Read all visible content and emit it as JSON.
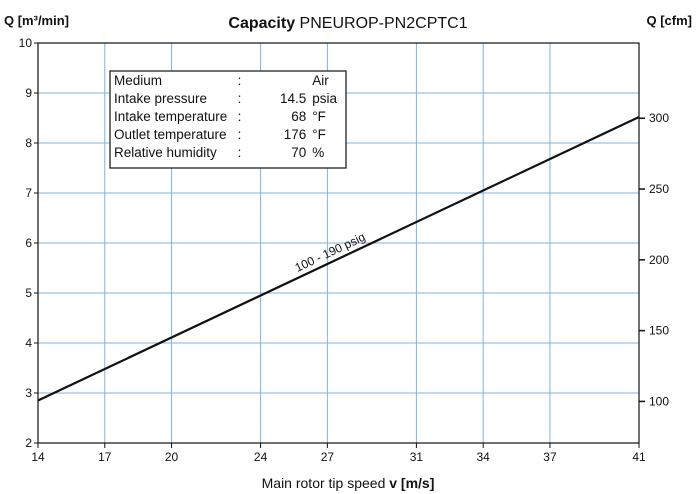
{
  "chart_data": {
    "type": "line",
    "title": {
      "bold": "Capacity",
      "rest": " PNEUROP-PN2CPTC1"
    },
    "ylabel_left": "Q [m³/min]",
    "ylabel_right": "Q [cfm]",
    "xlabel": {
      "pre": "Main rotor tip speed ",
      "bold": "v [m/s]"
    },
    "x_ticks": [
      "14",
      "17",
      "20",
      "24",
      "27",
      "31",
      "34",
      "37",
      "41"
    ],
    "y_left_ticks": [
      "2",
      "3",
      "4",
      "5",
      "6",
      "7",
      "8",
      "9",
      "10"
    ],
    "ylim_left": [
      2,
      10
    ],
    "y_right_ticks": [
      100,
      150,
      200,
      250,
      300
    ],
    "grid": true,
    "series": [
      {
        "name": "100 - 190 psig",
        "points": [
          {
            "x": 14,
            "y": 2.85
          },
          {
            "x": 41,
            "y": 8.52
          }
        ]
      }
    ],
    "info_box": [
      {
        "label": "Medium",
        "sep": ":",
        "value": "",
        "unit": "Air"
      },
      {
        "label": "Intake pressure",
        "sep": ":",
        "value": "14.5",
        "unit": "psia"
      },
      {
        "label": "Intake temperature",
        "sep": ":",
        "value": "68",
        "unit": "°F"
      },
      {
        "label": "Outlet temperature",
        "sep": ":",
        "value": "176",
        "unit": "°F"
      },
      {
        "label": "Relative humidity",
        "sep": ":",
        "value": "70",
        "unit": "%"
      }
    ]
  }
}
